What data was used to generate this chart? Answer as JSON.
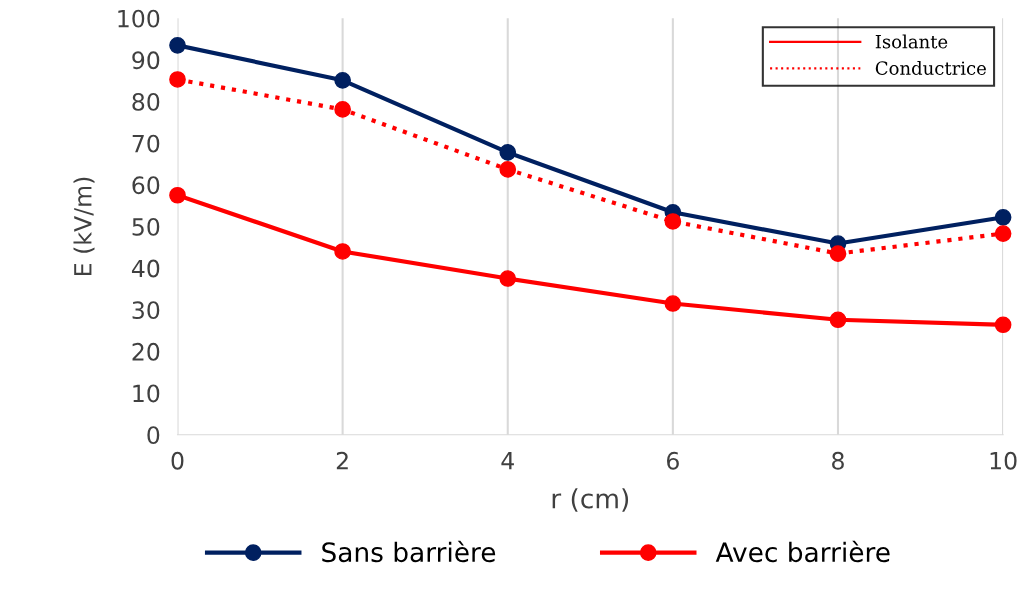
{
  "chart_data": {
    "type": "line",
    "xlabel": "r (cm)",
    "ylabel": "E (kV/m)",
    "x": [
      0,
      2,
      4,
      6,
      8,
      10
    ],
    "series": [
      {
        "name": "Sans barrière",
        "color": "#002060",
        "values": [
          93.5,
          85.1,
          67.8,
          53.4,
          45.9,
          52.2
        ]
      },
      {
        "name": "Avec barrière",
        "color": "#ff0000",
        "values": [
          57.5,
          44.0,
          37.5,
          31.5,
          27.6,
          26.4
        ]
      },
      {
        "color": "#ff0000",
        "line_style": "dotted",
        "values": [
          85.3,
          78.1,
          63.7,
          51.2,
          43.5,
          48.3
        ]
      }
    ],
    "annotations": [
      "Isolante",
      "Conductrice"
    ],
    "xlim": [
      0,
      10
    ],
    "xticks": [
      0,
      2,
      4,
      6,
      8,
      10
    ],
    "ylim": [
      0,
      100
    ],
    "yticks": [
      0,
      10,
      20,
      30,
      40,
      50,
      60,
      70,
      80,
      90,
      100
    ],
    "grid": "x",
    "legend": "bottom",
    "marker": "circle",
    "line_style": "solid"
  }
}
